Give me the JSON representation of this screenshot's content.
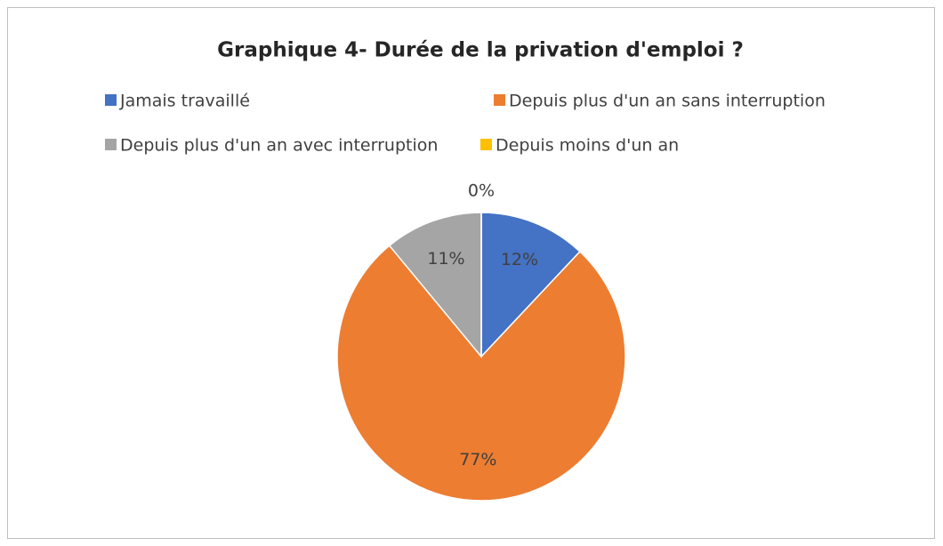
{
  "chart_data": {
    "type": "pie",
    "title": "Graphique 4- Durée de la privation d'emploi ?",
    "categories": [
      "Jamais travaillé",
      "Depuis plus d'un an sans interruption",
      "Depuis plus d'un an avec interruption",
      "Depuis moins d'un an"
    ],
    "values": [
      12,
      77,
      11,
      0
    ],
    "value_labels": [
      "12%",
      "77%",
      "11%",
      "0%"
    ],
    "colors": [
      "#4472c4",
      "#ed7d31",
      "#a5a5a5",
      "#ffc000"
    ],
    "legend": "top"
  }
}
